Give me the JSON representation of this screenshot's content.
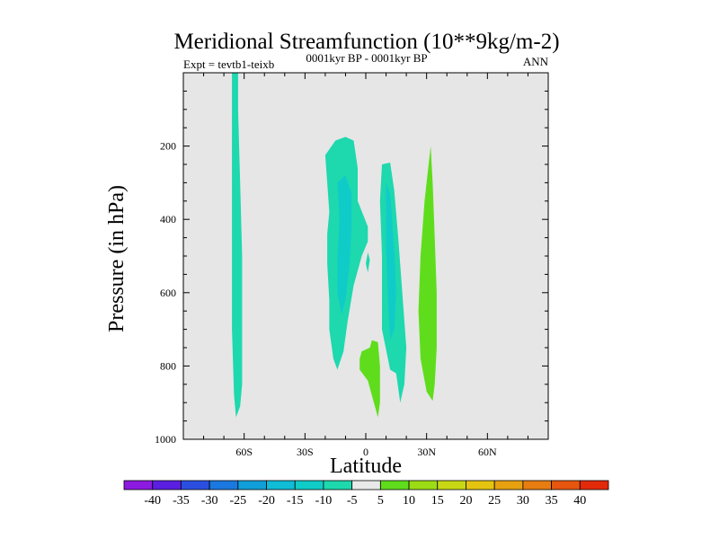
{
  "chart_data": {
    "type": "contour",
    "title": "Meridional Streamfunction (10**9kg/m-2)",
    "subtitle_left": "Expt = tevtb1-teixb",
    "subtitle_center": "0001kyr BP - 0001kyr BP",
    "subtitle_right": "ANN",
    "xlabel": "Latitude",
    "ylabel": "Pressure (in hPa)",
    "xlim": [
      -90,
      90
    ],
    "ylim": [
      0,
      1000
    ],
    "y_reversed": true,
    "xticks": [
      -60,
      -30,
      0,
      30,
      60
    ],
    "xtick_labels": [
      "60S",
      "30S",
      "0",
      "30N",
      "60N"
    ],
    "yticks": [
      200,
      400,
      600,
      800,
      1000
    ],
    "ytick_labels": [
      "200",
      "400",
      "600",
      "800",
      "1000"
    ],
    "background_color": "#e6e6e6",
    "colorbar": {
      "levels": [
        -40,
        -35,
        -30,
        -25,
        -20,
        -15,
        -10,
        -5,
        5,
        10,
        15,
        20,
        25,
        30,
        35,
        40
      ],
      "labels": [
        "-40",
        "-35",
        "-30",
        "-25",
        "-20",
        "-15",
        "-10",
        "-5",
        "5",
        "10",
        "15",
        "20",
        "25",
        "30",
        "35",
        "40"
      ],
      "colors": [
        "#8c1ae0",
        "#5a1fe0",
        "#2a4fe0",
        "#1a78e0",
        "#109fd8",
        "#10bcd6",
        "#10ccc8",
        "#1ed8ae",
        "#e9e9e9",
        "#5fdd1c",
        "#9cdc14",
        "#c8d814",
        "#e4c410",
        "#e7a110",
        "#e77d10",
        "#e6560e",
        "#e22a0a"
      ]
    },
    "regions": [
      {
        "name": "negative-band-60s",
        "value_range": [
          -10,
          -5
        ],
        "color": "#1ed8ae",
        "polygon": [
          [
            -66,
            0
          ],
          [
            -63,
            0
          ],
          [
            -63,
            100
          ],
          [
            -62,
            300
          ],
          [
            -61,
            500
          ],
          [
            -61,
            700
          ],
          [
            -61,
            850
          ],
          [
            -62,
            910
          ],
          [
            -64,
            940
          ],
          [
            -65,
            880
          ],
          [
            -66,
            700
          ],
          [
            -66,
            500
          ],
          [
            -66,
            300
          ],
          [
            -66,
            100
          ]
        ]
      },
      {
        "name": "negative-cell-south-tropics-outer",
        "value_range": [
          -10,
          -5
        ],
        "color": "#1ed8ae",
        "polygon": [
          [
            -20,
            225
          ],
          [
            -15,
            185
          ],
          [
            -10,
            175
          ],
          [
            -6,
            185
          ],
          [
            -4,
            260
          ],
          [
            -4,
            350
          ],
          [
            1,
            420
          ],
          [
            1,
            460
          ],
          [
            -2,
            500
          ],
          [
            -6,
            580
          ],
          [
            -9,
            680
          ],
          [
            -11,
            760
          ],
          [
            -14,
            810
          ],
          [
            -16,
            780
          ],
          [
            -18,
            700
          ],
          [
            -18,
            620
          ],
          [
            -19,
            520
          ],
          [
            -19,
            440
          ],
          [
            -18,
            380
          ],
          [
            -19,
            300
          ]
        ]
      },
      {
        "name": "negative-cell-south-tropics-core",
        "value_range": [
          -15,
          -10
        ],
        "color": "#10ccc8",
        "polygon": [
          [
            -14,
            300
          ],
          [
            -10,
            280
          ],
          [
            -7,
            330
          ],
          [
            -7,
            420
          ],
          [
            -8,
            520
          ],
          [
            -10,
            620
          ],
          [
            -12,
            660
          ],
          [
            -14,
            600
          ],
          [
            -14,
            500
          ],
          [
            -13,
            400
          ]
        ]
      },
      {
        "name": "negative-sliver-equator",
        "value_range": [
          -10,
          -5
        ],
        "color": "#1ed8ae",
        "polygon": [
          [
            1,
            490
          ],
          [
            2,
            510
          ],
          [
            1,
            545
          ],
          [
            0,
            520
          ]
        ]
      },
      {
        "name": "negative-cell-north-tropics-outer",
        "value_range": [
          -10,
          -5
        ],
        "color": "#1ed8ae",
        "polygon": [
          [
            8,
            250
          ],
          [
            12,
            245
          ],
          [
            14,
            320
          ],
          [
            16,
            450
          ],
          [
            18,
            600
          ],
          [
            20,
            750
          ],
          [
            19,
            850
          ],
          [
            17,
            900
          ],
          [
            15,
            820
          ],
          [
            12,
            810
          ],
          [
            8,
            700
          ],
          [
            8,
            500
          ],
          [
            7,
            350
          ]
        ]
      },
      {
        "name": "negative-cell-north-tropics-core",
        "value_range": [
          -15,
          -10
        ],
        "color": "#10ccc8",
        "polygon": [
          [
            10,
            300
          ],
          [
            12,
            330
          ],
          [
            14,
            480
          ],
          [
            15,
            600
          ],
          [
            14,
            700
          ],
          [
            12,
            730
          ],
          [
            11,
            620
          ],
          [
            10,
            480
          ]
        ]
      },
      {
        "name": "positive-cell-equator-low",
        "value_range": [
          5,
          10
        ],
        "color": "#5fdd1c",
        "polygon": [
          [
            -3,
            780
          ],
          [
            -2,
            760
          ],
          [
            2,
            750
          ],
          [
            3,
            730
          ],
          [
            6,
            735
          ],
          [
            7,
            800
          ],
          [
            7,
            900
          ],
          [
            6,
            940
          ],
          [
            4,
            900
          ],
          [
            1,
            840
          ],
          [
            -3,
            810
          ]
        ]
      },
      {
        "name": "positive-cell-north-subtropics",
        "value_range": [
          5,
          10
        ],
        "color": "#5fdd1c",
        "polygon": [
          [
            32,
            200
          ],
          [
            33,
            300
          ],
          [
            34,
            450
          ],
          [
            35,
            600
          ],
          [
            35,
            750
          ],
          [
            34,
            850
          ],
          [
            33,
            895
          ],
          [
            30,
            870
          ],
          [
            27,
            780
          ],
          [
            26,
            650
          ],
          [
            27,
            500
          ],
          [
            29,
            350
          ],
          [
            31,
            250
          ]
        ]
      }
    ]
  }
}
